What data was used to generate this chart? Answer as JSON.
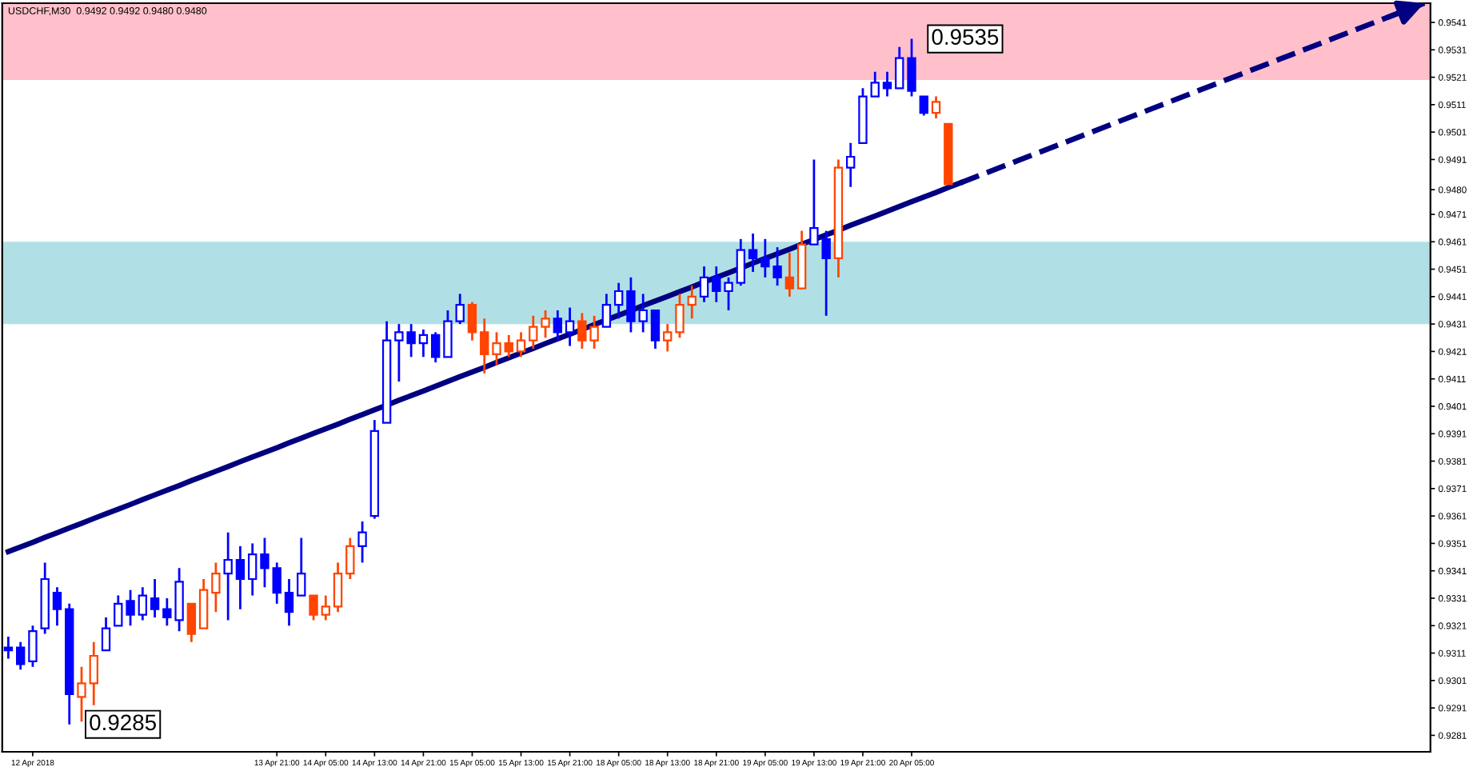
{
  "chart_data": {
    "type": "candlestick",
    "title": "USDCHF,M30  0.9492 0.9492 0.9480 0.9480",
    "categories": [
      null,
      null,
      "12 Apr 2018",
      null,
      null,
      null,
      null,
      null,
      null,
      null,
      null,
      null,
      null,
      null,
      null,
      null,
      null,
      null,
      null,
      null,
      null,
      null,
      "13 Apr 21:00",
      null,
      null,
      null,
      "14 Apr 05:00",
      null,
      null,
      null,
      "14 Apr 13:00",
      null,
      null,
      null,
      "14 Apr 21:00",
      null,
      null,
      null,
      "15 Apr 05:00",
      null,
      null,
      null,
      "15 Apr 13:00",
      null,
      null,
      null,
      "15 Apr 21:00",
      null,
      null,
      null,
      "18 Apr 05:00",
      null,
      null,
      null,
      "18 Apr 13:00",
      null,
      null,
      null,
      "18 Apr 21:00",
      null,
      null,
      null,
      "19 Apr 05:00",
      null,
      null,
      null,
      "19 Apr 13:00",
      null,
      null,
      null,
      "19 Apr 21:00",
      null,
      null,
      null,
      "20 Apr 05:00",
      null,
      null,
      null,
      null,
      null,
      null,
      null,
      null,
      null,
      null,
      null,
      null,
      null,
      null,
      null,
      null,
      null,
      null,
      null,
      null,
      null,
      null,
      null,
      null,
      null,
      null,
      null,
      null,
      null,
      null,
      null,
      null,
      null,
      null,
      null,
      null,
      null,
      null,
      null,
      null,
      null,
      null
    ],
    "ohlc": [
      [
        0.9313,
        0.9317,
        0.9309,
        0.9312
      ],
      [
        0.9313,
        0.9315,
        0.9305,
        0.9307
      ],
      [
        0.9308,
        0.9321,
        0.9306,
        0.9319
      ],
      [
        0.932,
        0.9344,
        0.9318,
        0.9338
      ],
      [
        0.9333,
        0.9335,
        0.9321,
        0.9327
      ],
      [
        0.9327,
        0.9329,
        0.9285,
        0.9296
      ],
      [
        0.9295,
        0.9306,
        0.9286,
        0.93
      ],
      [
        0.93,
        0.9315,
        0.9292,
        0.931
      ],
      [
        0.9312,
        0.9324,
        0.9312,
        0.932
      ],
      [
        0.9321,
        0.9332,
        0.9321,
        0.9329
      ],
      [
        0.933,
        0.9334,
        0.9321,
        0.9325
      ],
      [
        0.9325,
        0.9335,
        0.9323,
        0.9332
      ],
      [
        0.9331,
        0.9338,
        0.9324,
        0.9327
      ],
      [
        0.9327,
        0.9331,
        0.9321,
        0.9324
      ],
      [
        0.9323,
        0.9342,
        0.9319,
        0.9337
      ],
      [
        0.9329,
        0.9329,
        0.9315,
        0.9318
      ],
      [
        0.932,
        0.9338,
        0.932,
        0.9334
      ],
      [
        0.9333,
        0.9344,
        0.9326,
        0.934
      ],
      [
        0.934,
        0.9355,
        0.9323,
        0.9345
      ],
      [
        0.9345,
        0.935,
        0.9327,
        0.9338
      ],
      [
        0.9338,
        0.9351,
        0.9332,
        0.9347
      ],
      [
        0.9347,
        0.9353,
        0.9335,
        0.9342
      ],
      [
        0.9342,
        0.9344,
        0.9329,
        0.9333
      ],
      [
        0.9333,
        0.9338,
        0.9321,
        0.9326
      ],
      [
        0.9332,
        0.9353,
        0.9332,
        0.934
      ],
      [
        0.9332,
        0.9332,
        0.9323,
        0.9325
      ],
      [
        0.9325,
        0.9332,
        0.9323,
        0.9328
      ],
      [
        0.9328,
        0.9344,
        0.9326,
        0.934
      ],
      [
        0.934,
        0.9353,
        0.9338,
        0.935
      ],
      [
        0.935,
        0.9359,
        0.9344,
        0.9355
      ],
      [
        0.9361,
        0.9396,
        0.936,
        0.9392
      ],
      [
        0.9395,
        0.9432,
        0.9395,
        0.9425
      ],
      [
        0.9425,
        0.9431,
        0.941,
        0.9428
      ],
      [
        0.9428,
        0.9431,
        0.9419,
        0.9424
      ],
      [
        0.9424,
        0.9429,
        0.9419,
        0.9427
      ],
      [
        0.9427,
        0.9428,
        0.9417,
        0.9419
      ],
      [
        0.9419,
        0.9436,
        0.9419,
        0.9432
      ],
      [
        0.9432,
        0.9442,
        0.9431,
        0.9438
      ],
      [
        0.9438,
        0.9439,
        0.9425,
        0.9428
      ],
      [
        0.9428,
        0.9433,
        0.9413,
        0.942
      ],
      [
        0.942,
        0.9428,
        0.9416,
        0.9424
      ],
      [
        0.9424,
        0.9427,
        0.9419,
        0.9421
      ],
      [
        0.9421,
        0.9428,
        0.9419,
        0.9425
      ],
      [
        0.9425,
        0.9434,
        0.9422,
        0.943
      ],
      [
        0.943,
        0.9436,
        0.9426,
        0.9433
      ],
      [
        0.9433,
        0.9436,
        0.9425,
        0.9428
      ],
      [
        0.9428,
        0.9437,
        0.9423,
        0.9432
      ],
      [
        0.9432,
        0.9435,
        0.9422,
        0.9425
      ],
      [
        0.9425,
        0.9434,
        0.9422,
        0.943
      ],
      [
        0.943,
        0.9442,
        0.943,
        0.9438
      ],
      [
        0.9438,
        0.9446,
        0.9433,
        0.9443
      ],
      [
        0.9443,
        0.9448,
        0.9428,
        0.9432
      ],
      [
        0.9432,
        0.9442,
        0.9428,
        0.9436
      ],
      [
        0.9436,
        0.9436,
        0.9422,
        0.9425
      ],
      [
        0.9425,
        0.9431,
        0.9421,
        0.9428
      ],
      [
        0.9428,
        0.9442,
        0.9426,
        0.9438
      ],
      [
        0.9438,
        0.9445,
        0.9433,
        0.9441
      ],
      [
        0.9441,
        0.9452,
        0.9439,
        0.9448
      ],
      [
        0.9448,
        0.9452,
        0.9439,
        0.9443
      ],
      [
        0.9443,
        0.9448,
        0.9436,
        0.9446
      ],
      [
        0.9446,
        0.9462,
        0.9445,
        0.9458
      ],
      [
        0.9458,
        0.9464,
        0.945,
        0.9455
      ],
      [
        0.9455,
        0.9462,
        0.9448,
        0.9452
      ],
      [
        0.9452,
        0.9459,
        0.9445,
        0.9448
      ],
      [
        0.9448,
        0.9457,
        0.9441,
        0.9444
      ],
      [
        0.9444,
        0.9465,
        0.9444,
        0.946
      ],
      [
        0.946,
        0.9491,
        0.946,
        0.9466
      ],
      [
        0.9462,
        0.9465,
        0.9434,
        0.9455
      ],
      [
        0.9455,
        0.9491,
        0.9448,
        0.9488
      ],
      [
        0.9488,
        0.9497,
        0.9481,
        0.9492
      ],
      [
        0.9497,
        0.9517,
        0.9497,
        0.9514
      ],
      [
        0.9514,
        0.9523,
        0.9514,
        0.9519
      ],
      [
        0.9519,
        0.9523,
        0.9514,
        0.9517
      ],
      [
        0.9517,
        0.9532,
        0.9517,
        0.9528
      ],
      [
        0.9528,
        0.9535,
        0.9514,
        0.9516
      ],
      [
        0.9514,
        0.9514,
        0.9507,
        0.9508
      ],
      [
        0.9508,
        0.9514,
        0.9506,
        0.9512
      ],
      [
        0.9504,
        0.9504,
        0.9482,
        0.9482
      ],
      null,
      null,
      null,
      null,
      null,
      null,
      null,
      null,
      null,
      null,
      null,
      null,
      null,
      null,
      null,
      null,
      null,
      null,
      null,
      null,
      null,
      null,
      null,
      null,
      null,
      null,
      null,
      null,
      null,
      null,
      null,
      null,
      null,
      null,
      null,
      null,
      null,
      null,
      null
    ],
    "colors": [
      "#0000ff",
      "#0000ff",
      "#0000ff",
      "#0000ff",
      "#0000ff",
      "#0000ff",
      "#ff4500",
      "#ff4500",
      "#0000ff",
      "#0000ff",
      "#0000ff",
      "#0000ff",
      "#0000ff",
      "#0000ff",
      "#0000ff",
      "#ff4500",
      "#ff4500",
      "#ff4500",
      "#0000ff",
      "#0000ff",
      "#0000ff",
      "#0000ff",
      "#0000ff",
      "#0000ff",
      "#0000ff",
      "#ff4500",
      "#ff4500",
      "#ff4500",
      "#ff4500",
      "#0000ff",
      "#0000ff",
      "#0000ff",
      "#0000ff",
      "#0000ff",
      "#0000ff",
      "#0000ff",
      "#0000ff",
      "#0000ff",
      "#ff4500",
      "#ff4500",
      "#ff4500",
      "#ff4500",
      "#ff4500",
      "#ff4500",
      "#ff4500",
      "#0000ff",
      "#0000ff",
      "#ff4500",
      "#ff4500",
      "#0000ff",
      "#0000ff",
      "#0000ff",
      "#0000ff",
      "#0000ff",
      "#ff4500",
      "#ff4500",
      "#ff4500",
      "#0000ff",
      "#0000ff",
      "#0000ff",
      "#0000ff",
      "#0000ff",
      "#0000ff",
      "#0000ff",
      "#ff4500",
      "#ff4500",
      "#0000ff",
      "#0000ff",
      "#ff4500",
      "#0000ff",
      "#0000ff",
      "#0000ff",
      "#0000ff",
      "#0000ff",
      "#0000ff",
      "#0000ff",
      "#ff4500",
      "#ff4500",
      null,
      null,
      null,
      null,
      null,
      null,
      null,
      null,
      null,
      null,
      null,
      null,
      null,
      null,
      null,
      null,
      null,
      null,
      null,
      null,
      null,
      null,
      null,
      null,
      null,
      null,
      null,
      null,
      null,
      null,
      null,
      null,
      null,
      null,
      null,
      null,
      null,
      null,
      null
    ],
    "series": [
      {
        "type": "line",
        "color": "#000080",
        "line_style": "solid",
        "values": [
          0.9348,
          0.93497,
          0.93514,
          0.93532,
          0.93549,
          0.93566,
          0.93583,
          0.93601,
          0.93618,
          0.93635,
          0.93652,
          0.9367,
          0.93687,
          0.93704,
          0.93721,
          0.93739,
          0.93756,
          0.93773,
          0.9379,
          0.93808,
          0.93825,
          0.93842,
          0.93859,
          0.93877,
          0.93894,
          0.93911,
          0.93928,
          0.93945,
          0.93963,
          0.9398,
          0.93997,
          0.94014,
          0.94032,
          0.94049,
          0.94066,
          0.94083,
          0.94101,
          0.94118,
          0.94135,
          0.94152,
          0.9417,
          0.94187,
          0.94204,
          0.94221,
          0.94239,
          0.94256,
          0.94273,
          0.9429,
          0.94308,
          0.94325,
          0.94342,
          0.94359,
          0.94377,
          0.94394,
          0.94411,
          0.94428,
          0.94445,
          0.94463,
          0.9448,
          0.94497,
          0.94514,
          0.94532,
          0.94549,
          0.94566,
          0.94583,
          0.94601,
          0.94618,
          0.94635,
          0.94652,
          0.9467,
          0.94687,
          0.94704,
          0.94721,
          0.94739,
          0.94756,
          0.94773,
          0.9479,
          0.94808,
          0.94825,
          null,
          null,
          null,
          null,
          null,
          null,
          null,
          null,
          null,
          null,
          null,
          null,
          null,
          null,
          null,
          null,
          null,
          null,
          null,
          null,
          null,
          null,
          null,
          null,
          null,
          null,
          null,
          null,
          null,
          null,
          null,
          null,
          null,
          null,
          null,
          null,
          null,
          null
        ]
      }
    ],
    "bands": [
      {
        "axis": "y",
        "from": 0.952,
        "to": 0.9548,
        "color": "#ffc0cb"
      },
      {
        "axis": "y",
        "from": 0.9431,
        "to": 0.9461,
        "color": "#b0e0e6"
      }
    ],
    "annotations": [
      "0.9535",
      "0.9285"
    ],
    "ylim": [
      0.9275,
      0.9548
    ],
    "yticks": [
      0.9541,
      0.9531,
      0.9521,
      0.9511,
      0.9501,
      0.9491,
      {
        "value": 0.948,
        "label": "0.9480"
      },
      0.9471,
      0.9461,
      0.9451,
      0.9441,
      0.9431,
      0.9421,
      0.9411,
      0.9401,
      0.9391,
      0.9381,
      0.9371,
      0.9361,
      0.9351,
      0.9341,
      0.9331,
      0.9321,
      0.9311,
      0.9301,
      0.9291,
      0.9281
    ],
    "grid": false,
    "legend": false
  }
}
